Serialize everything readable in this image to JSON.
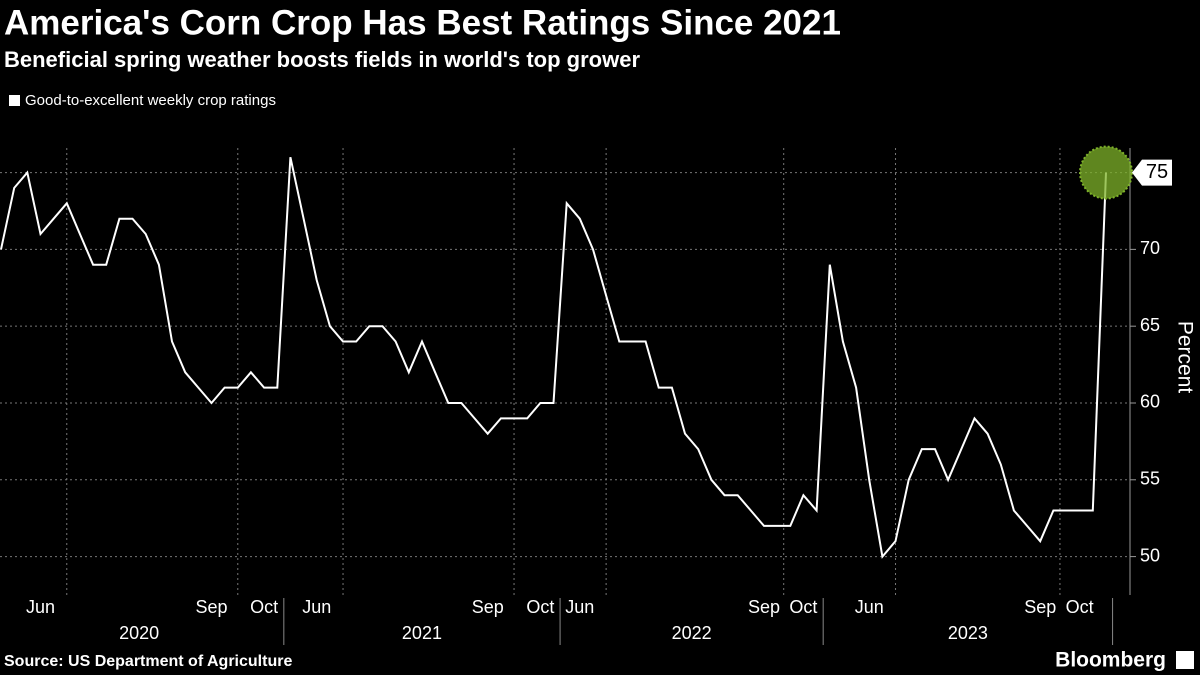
{
  "chart_data": {
    "type": "line",
    "title": "America's Corn Crop Has Best Ratings Since 2021",
    "subtitle": "Beneficial spring weather boosts fields in world's top grower",
    "source": "Source: US Department of Agriculture",
    "brand": "Bloomberg",
    "y_label": "Percent",
    "groups": [
      {
        "label": "2020",
        "categories": [
          null,
          null,
          null,
          "Jun",
          null,
          null,
          null,
          null,
          null,
          null,
          null,
          null,
          null,
          null,
          null,
          null,
          "Sep",
          null,
          null,
          null,
          "Oct",
          null
        ]
      },
      {
        "label": "2021",
        "categories": [
          null,
          null,
          "Jun",
          null,
          null,
          null,
          null,
          null,
          null,
          null,
          null,
          null,
          null,
          null,
          null,
          "Sep",
          null,
          null,
          null,
          "Oct",
          null
        ]
      },
      {
        "label": "2022",
        "categories": [
          null,
          "Jun",
          null,
          null,
          null,
          null,
          null,
          null,
          null,
          null,
          null,
          null,
          null,
          null,
          null,
          "Sep",
          null,
          null,
          "Oct",
          null
        ]
      },
      {
        "label": "2023",
        "categories": [
          null,
          null,
          null,
          "Jun",
          null,
          null,
          null,
          null,
          null,
          null,
          null,
          null,
          null,
          null,
          null,
          null,
          "Sep",
          null,
          null,
          "Oct",
          null,
          null
        ]
      }
    ],
    "series": [
      {
        "name": "Good-to-excellent weekly crop ratings",
        "color": "#ffffff",
        "values": [
          70,
          74,
          75,
          71,
          72,
          73,
          71,
          69,
          69,
          72,
          72,
          71,
          69,
          64,
          62,
          61,
          60,
          61,
          61,
          62,
          61,
          61,
          76,
          72,
          68,
          65,
          64,
          64,
          65,
          65,
          64,
          62,
          64,
          62,
          60,
          60,
          59,
          58,
          59,
          59,
          59,
          60,
          60,
          73,
          72,
          70,
          67,
          64,
          64,
          64,
          61,
          61,
          58,
          57,
          55,
          54,
          54,
          53,
          52,
          52,
          52,
          54,
          53,
          69,
          64,
          61,
          55,
          50,
          51,
          55,
          57,
          57,
          55,
          57,
          59,
          58,
          56,
          53,
          52,
          51,
          53,
          53,
          53,
          53,
          75
        ]
      }
    ],
    "highlight_color": "#7fb32a",
    "ylim": [
      47.5,
      76.6
    ],
    "yticks": [
      50,
      55,
      60,
      65,
      70,
      75
    ],
    "grid": true
  }
}
